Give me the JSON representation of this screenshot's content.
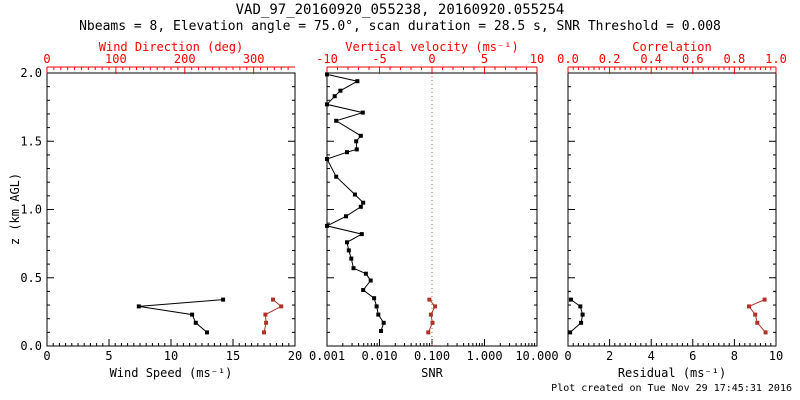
{
  "chart_data": {
    "type": "line",
    "title": "VAD_97_20160920_055238, 20160920.055254",
    "subtitle": "Nbeams = 8, Elevation angle = 75.0°, scan duration = 28.5 s, SNR Threshold = 0.008",
    "legend": "none",
    "grid": false,
    "colors": {
      "axis_red": "#ff0000",
      "series_red": "#b03226",
      "series_black": "#000000",
      "refline_red": "#d8503c"
    },
    "yaxis": {
      "label": "z (km AGL)",
      "min": 0,
      "max": 2,
      "minor_step": 0.1,
      "ticks": {
        "values": [
          0,
          0.5,
          1,
          1.5,
          2
        ],
        "labels": [
          "0.0",
          "0.5",
          "1.0",
          "1.5",
          "2.0"
        ]
      }
    },
    "panels": [
      {
        "name": "wind",
        "bottom_axis": {
          "label": "Wind Speed (ms⁻¹)",
          "scale": "linear",
          "min": 0,
          "max": 20,
          "minor_step": 0.5,
          "tick_values": [
            0,
            5,
            10,
            15,
            20
          ],
          "tick_labels": [
            "0",
            "5",
            "10",
            "15",
            "20"
          ]
        },
        "top_axis": {
          "label": "Wind Direction (deg)",
          "scale": "linear",
          "min": 0,
          "max": 360,
          "minor_step": 10,
          "tick_values": [
            0,
            100,
            200,
            300
          ],
          "tick_labels": [
            "0",
            "100",
            "200",
            "300"
          ]
        },
        "refline": null,
        "series": [
          {
            "name": "wind-speed",
            "axis": "bottom",
            "color": "#000000",
            "points": [
              [
                12.9,
                0.1
              ],
              [
                12.0,
                0.17
              ],
              [
                11.7,
                0.23
              ],
              [
                7.4,
                0.29
              ],
              [
                14.2,
                0.34
              ]
            ]
          },
          {
            "name": "wind-direction",
            "axis": "top",
            "color": "#b03226",
            "points": [
              [
                315,
                0.1
              ],
              [
                318,
                0.17
              ],
              [
                317,
                0.23
              ],
              [
                340,
                0.29
              ],
              [
                328,
                0.34
              ]
            ]
          }
        ]
      },
      {
        "name": "snr",
        "bottom_axis": {
          "label": "SNR",
          "scale": "log",
          "min": 0.001,
          "max": 10,
          "tick_values": [
            0.001,
            0.01,
            0.1,
            1,
            10
          ],
          "tick_labels": [
            "0.001",
            "0.010",
            "0.100",
            "1.000",
            "10.000"
          ]
        },
        "top_axis": {
          "label": "Vertical velocity (ms⁻¹)",
          "scale": "linear",
          "min": -10,
          "max": 10,
          "minor_step": 1,
          "tick_values": [
            -10,
            -5,
            0,
            5,
            10
          ],
          "tick_labels": [
            "-10",
            "-5",
            "0",
            "5",
            "10"
          ]
        },
        "refline": {
          "axis": "top",
          "value": 0,
          "color": "#d8503c",
          "style": "dotted"
        },
        "series": [
          {
            "name": "snr-profile",
            "axis": "bottom",
            "color": "#000000",
            "points": [
              [
                0.0107,
                0.11
              ],
              [
                0.012,
                0.17
              ],
              [
                0.0095,
                0.23
              ],
              [
                0.0088,
                0.29
              ],
              [
                0.0079,
                0.35
              ],
              [
                0.0049,
                0.41
              ],
              [
                0.0068,
                0.48
              ],
              [
                0.0055,
                0.53
              ],
              [
                0.0032,
                0.57
              ],
              [
                0.0029,
                0.64
              ],
              [
                0.0026,
                0.7
              ],
              [
                0.0024,
                0.76
              ],
              [
                0.0046,
                0.82
              ],
              [
                0.001,
                0.88
              ],
              [
                0.0023,
                0.95
              ],
              [
                0.0044,
                1.02
              ],
              [
                0.0049,
                1.05
              ],
              [
                0.0034,
                1.11
              ],
              [
                0.0015,
                1.24
              ],
              [
                0.001,
                1.37
              ],
              [
                0.0024,
                1.42
              ],
              [
                0.0037,
                1.44
              ],
              [
                0.0036,
                1.5
              ],
              [
                0.0044,
                1.54
              ],
              [
                0.0015,
                1.65
              ],
              [
                0.0048,
                1.71
              ],
              [
                0.001,
                1.77
              ],
              [
                0.0014,
                1.83
              ],
              [
                0.0018,
                1.87
              ],
              [
                0.0038,
                1.94
              ],
              [
                0.001,
                1.99
              ]
            ]
          },
          {
            "name": "vertical-velocity",
            "axis": "top",
            "color": "#b03226",
            "points": [
              [
                -0.35,
                0.1
              ],
              [
                0.05,
                0.17
              ],
              [
                -0.1,
                0.23
              ],
              [
                0.3,
                0.29
              ],
              [
                -0.25,
                0.34
              ]
            ]
          }
        ]
      },
      {
        "name": "residual",
        "bottom_axis": {
          "label": "Residual (ms⁻¹)",
          "scale": "linear",
          "min": 0,
          "max": 10,
          "minor_step": 0.25,
          "tick_values": [
            0,
            2,
            4,
            6,
            8,
            10
          ],
          "tick_labels": [
            "0",
            "2",
            "4",
            "6",
            "8",
            "10"
          ]
        },
        "top_axis": {
          "label": "Correlation",
          "scale": "linear",
          "min": 0,
          "max": 1,
          "minor_step": 0.025,
          "tick_values": [
            0,
            0.2,
            0.4,
            0.6,
            0.8,
            1
          ],
          "tick_labels": [
            "0.0",
            "0.2",
            "0.4",
            "0.6",
            "0.8",
            "1.0"
          ]
        },
        "refline": null,
        "series": [
          {
            "name": "residual",
            "axis": "bottom",
            "color": "#000000",
            "points": [
              [
                0.1,
                0.1
              ],
              [
                0.63,
                0.17
              ],
              [
                0.7,
                0.23
              ],
              [
                0.59,
                0.29
              ],
              [
                0.14,
                0.34
              ]
            ]
          },
          {
            "name": "correlation",
            "axis": "top",
            "color": "#b03226",
            "points": [
              [
                0.95,
                0.1
              ],
              [
                0.91,
                0.17
              ],
              [
                0.9,
                0.23
              ],
              [
                0.87,
                0.29
              ],
              [
                0.945,
                0.34
              ]
            ]
          }
        ]
      }
    ]
  },
  "footer": {
    "created": "Plot created on Tue Nov 29 17:45:31 2016"
  }
}
